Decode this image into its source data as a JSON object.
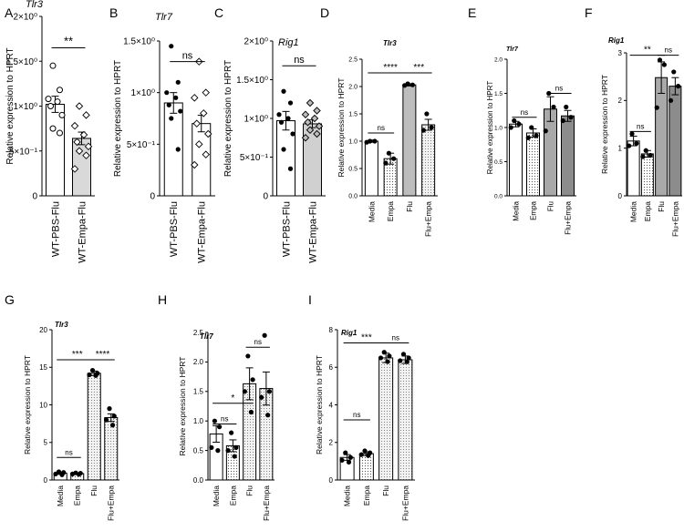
{
  "chart_data": [
    {
      "panel": "A",
      "title": "Tlr3",
      "type": "bar",
      "ylabel": "Relative expression to HPRT",
      "ylim": [
        0,
        2
      ],
      "yticks": [
        {
          "v": 0,
          "t": "0"
        },
        {
          "v": 0.5,
          "t": "5×10⁻¹"
        },
        {
          "v": 1,
          "t": "1×10⁰"
        },
        {
          "v": 1.5,
          "t": "1.5×10⁰"
        },
        {
          "v": 2,
          "t": "2×10⁰"
        }
      ],
      "categories": [
        "WT-PBS-Flu",
        "WT-Empa-Flu"
      ],
      "values": [
        1.02,
        0.64
      ],
      "errors": [
        0.09,
        0.07
      ],
      "points": [
        [
          1.45,
          1.18,
          1.08,
          1.05,
          1.0,
          0.9,
          0.75,
          0.7
        ],
        [
          1.0,
          0.9,
          0.78,
          0.68,
          0.6,
          0.55,
          0.5,
          0.45,
          0.3
        ]
      ],
      "styles": [
        "open-circle",
        "open-diamond"
      ],
      "fills": [
        "#ffffff",
        "#d9d9d9"
      ],
      "sig": [
        {
          "a": 0,
          "b": 1,
          "y": 1.65,
          "label": "**"
        }
      ]
    },
    {
      "panel": "B",
      "title": "Tlr7",
      "type": "bar",
      "ylabel": "Relative expression to HPRT",
      "ylim": [
        0,
        1.5
      ],
      "yticks": [
        {
          "v": 0,
          "t": "0"
        },
        {
          "v": 0.5,
          "t": "5×10⁻¹"
        },
        {
          "v": 1,
          "t": "1×10⁰"
        },
        {
          "v": 1.5,
          "t": "1.5×10⁰"
        }
      ],
      "categories": [
        "WT-PBS-Flu",
        "WT-Empa-Flu"
      ],
      "values": [
        0.9,
        0.7
      ],
      "errors": [
        0.1,
        0.08
      ],
      "points": [
        [
          1.45,
          1.1,
          1.0,
          0.95,
          0.88,
          0.82,
          0.75,
          0.45
        ],
        [
          1.3,
          1.0,
          0.95,
          0.8,
          0.7,
          0.6,
          0.5,
          0.4,
          0.3
        ]
      ],
      "styles": [
        "closed-circle",
        "open-diamond"
      ],
      "fills": [
        "#ffffff",
        "#ffffff"
      ],
      "sig": [
        {
          "a": 0,
          "b": 1,
          "y": 1.3,
          "label": "ns"
        }
      ]
    },
    {
      "panel": "C",
      "title": "Rig1",
      "type": "bar",
      "ylabel": "Relative expression to HPRT",
      "ylim": [
        0,
        2
      ],
      "yticks": [
        {
          "v": 0,
          "t": "0"
        },
        {
          "v": 0.5,
          "t": "5×10⁻¹"
        },
        {
          "v": 1,
          "t": "1×10⁰"
        },
        {
          "v": 1.5,
          "t": "1.5×10⁰"
        },
        {
          "v": 2,
          "t": "2×10⁰"
        }
      ],
      "categories": [
        "WT-PBS-Flu",
        "WT-Empa-Flu"
      ],
      "values": [
        0.97,
        0.93
      ],
      "errors": [
        0.12,
        0.05
      ],
      "points": [
        [
          1.35,
          1.2,
          1.05,
          1.0,
          0.95,
          0.8,
          0.6,
          0.35
        ],
        [
          1.2,
          1.1,
          1.05,
          1.0,
          0.95,
          0.9,
          0.85,
          0.8,
          0.75
        ]
      ],
      "styles": [
        "closed-circle",
        "grey-diamond"
      ],
      "fills": [
        "#ffffff",
        "#d0d0d0"
      ],
      "sig": [
        {
          "a": 0,
          "b": 1,
          "y": 1.68,
          "label": "ns"
        }
      ]
    },
    {
      "panel": "D",
      "title": "Tlr3",
      "type": "bar",
      "ylabel": "Relative expression to HPRT",
      "ylim": [
        0,
        2.5
      ],
      "yticks": [
        {
          "v": 0,
          "t": "0.0"
        },
        {
          "v": 0.5,
          "t": "0.5"
        },
        {
          "v": 1,
          "t": "1.0"
        },
        {
          "v": 1.5,
          "t": "1.5"
        },
        {
          "v": 2,
          "t": "2.0"
        },
        {
          "v": 2.5,
          "t": "2.5"
        }
      ],
      "categories": [
        "Media",
        "Empa",
        "Flu",
        "Flu+Empa"
      ],
      "values": [
        1.0,
        0.68,
        2.03,
        1.3
      ],
      "errors": [
        0.02,
        0.1,
        0.02,
        0.1
      ],
      "points": [
        [
          1.0,
          1.0,
          0.98
        ],
        [
          0.78,
          0.68,
          0.6
        ],
        [
          2.05,
          2.03,
          2.02
        ],
        [
          1.5,
          1.25,
          1.2
        ]
      ],
      "fills": [
        "#ffffff",
        "#e3e3e3",
        "#bdbdbd",
        "#d0d0d0"
      ],
      "sig": [
        {
          "a": 0,
          "b": 2,
          "y": 2.25,
          "label": "****"
        },
        {
          "a": 0,
          "b": 1,
          "y": 1.15,
          "label": "ns"
        },
        {
          "a": 2,
          "b": 3,
          "y": 2.25,
          "label": "***"
        }
      ]
    },
    {
      "panel": "E",
      "title": "Tlr7",
      "type": "bar",
      "ylabel": "Relative expression to HPRT",
      "ylim": [
        0,
        2.0
      ],
      "yticks": [
        {
          "v": 0,
          "t": "0.0"
        },
        {
          "v": 0.5,
          "t": "0.5"
        },
        {
          "v": 1,
          "t": "1.0"
        },
        {
          "v": 1.5,
          "t": "1.5"
        },
        {
          "v": 2,
          "t": "2.0"
        }
      ],
      "categories": [
        "Media",
        "Empa",
        "Flu",
        "Flu+Empa"
      ],
      "values": [
        1.05,
        0.92,
        1.27,
        1.17
      ],
      "errors": [
        0.04,
        0.06,
        0.18,
        0.08
      ],
      "points": [
        [
          1.1,
          1.05,
          1.0
        ],
        [
          1.0,
          0.88,
          0.85
        ],
        [
          1.5,
          1.3,
          0.95
        ],
        [
          1.3,
          1.15,
          1.1
        ]
      ],
      "fills": [
        "#ffffff",
        "#e3e3e3",
        "#a9a9a9",
        "#8c8c8c"
      ],
      "sig": [
        {
          "a": 0,
          "b": 1,
          "y": 1.15,
          "label": "ns"
        },
        {
          "a": 2,
          "b": 3,
          "y": 1.5,
          "label": "ns"
        }
      ]
    },
    {
      "panel": "F",
      "title": "Rig1",
      "type": "bar",
      "ylabel": "Relative expression to HPRT",
      "ylim": [
        0,
        3
      ],
      "yticks": [
        {
          "v": 0,
          "t": "0"
        },
        {
          "v": 1,
          "t": "1"
        },
        {
          "v": 2,
          "t": "2"
        },
        {
          "v": 3,
          "t": "3"
        }
      ],
      "categories": [
        "Media",
        "Empa",
        "Flu",
        "Flu+Empa"
      ],
      "values": [
        1.15,
        0.88,
        2.48,
        2.3
      ],
      "errors": [
        0.1,
        0.07,
        0.33,
        0.18
      ],
      "points": [
        [
          1.3,
          1.1,
          1.05
        ],
        [
          0.95,
          0.85,
          0.82
        ],
        [
          2.85,
          2.75,
          1.85
        ],
        [
          2.6,
          2.3,
          2.0
        ]
      ],
      "fills": [
        "#ffffff",
        "#e3e3e3",
        "#a9a9a9",
        "#8c8c8c"
      ],
      "sig": [
        {
          "a": 0,
          "b": 2,
          "y": 2.95,
          "label": "**"
        },
        {
          "a": 0,
          "b": 1,
          "y": 1.35,
          "label": "ns"
        },
        {
          "a": 2,
          "b": 3,
          "y": 2.95,
          "label": "ns"
        }
      ]
    },
    {
      "panel": "G",
      "title": "Tlr3",
      "type": "bar",
      "ylabel": "Relative expression to HPRT",
      "ylim": [
        0,
        20
      ],
      "yticks": [
        {
          "v": 0,
          "t": "0"
        },
        {
          "v": 5,
          "t": "5"
        },
        {
          "v": 10,
          "t": "10"
        },
        {
          "v": 15,
          "t": "15"
        },
        {
          "v": 20,
          "t": "20"
        }
      ],
      "categories": [
        "Media",
        "Empa",
        "Flu",
        "Flu+Empa"
      ],
      "values": [
        0.9,
        0.85,
        14.2,
        8.3
      ],
      "errors": [
        0.15,
        0.1,
        0.3,
        0.5
      ],
      "points": [
        [
          1.1,
          1.0,
          0.8,
          0.7
        ],
        [
          0.95,
          0.9,
          0.8,
          0.75
        ],
        [
          14.6,
          14.2,
          14.0,
          13.9
        ],
        [
          9.5,
          8.5,
          8.0,
          7.3
        ]
      ],
      "fills": [
        "#ffffff",
        "#e3e3e3",
        "#ececec",
        "#ececec"
      ],
      "sig": [
        {
          "a": 0,
          "b": 2,
          "y": 16.0,
          "label": "***"
        },
        {
          "a": 0,
          "b": 1,
          "y": 3.0,
          "label": "ns"
        },
        {
          "a": 2,
          "b": 3,
          "y": 16.0,
          "label": "****"
        }
      ]
    },
    {
      "panel": "H",
      "title": "Tlr7",
      "type": "bar",
      "ylabel": "Relative expression to HPRT",
      "ylim": [
        0,
        2.5
      ],
      "yticks": [
        {
          "v": 0,
          "t": "0.0"
        },
        {
          "v": 0.5,
          "t": "0.5"
        },
        {
          "v": 1,
          "t": "1.0"
        },
        {
          "v": 1.5,
          "t": "1.5"
        },
        {
          "v": 2,
          "t": "2.0"
        },
        {
          "v": 2.5,
          "t": "2.5"
        }
      ],
      "categories": [
        "Media",
        "Empa",
        "Flu",
        "Flu+Empa"
      ],
      "values": [
        0.78,
        0.58,
        1.63,
        1.55
      ],
      "errors": [
        0.14,
        0.1,
        0.27,
        0.28
      ],
      "points": [
        [
          1.0,
          0.9,
          0.55,
          0.5
        ],
        [
          0.8,
          0.55,
          0.5,
          0.4
        ],
        [
          2.1,
          1.7,
          1.5,
          1.15
        ],
        [
          2.45,
          1.5,
          1.4,
          1.1
        ]
      ],
      "fills": [
        "#ffffff",
        "#e3e3e3",
        "#ececec",
        "#ececec"
      ],
      "sig": [
        {
          "a": 0,
          "b": 2,
          "y": 1.3,
          "label": "*"
        },
        {
          "a": 0,
          "b": 1,
          "y": 0.95,
          "label": "ns"
        },
        {
          "a": 2,
          "b": 3,
          "y": 2.25,
          "label": "ns"
        }
      ]
    },
    {
      "panel": "I",
      "title": "Rig1",
      "type": "bar",
      "ylabel": "Relative expression to HPRT",
      "ylim": [
        0,
        8
      ],
      "yticks": [
        {
          "v": 0,
          "t": "0"
        },
        {
          "v": 2,
          "t": "2"
        },
        {
          "v": 4,
          "t": "4"
        },
        {
          "v": 6,
          "t": "6"
        },
        {
          "v": 8,
          "t": "8"
        }
      ],
      "categories": [
        "Media",
        "Empa",
        "Flu",
        "Flu+Empa"
      ],
      "values": [
        1.2,
        1.4,
        6.5,
        6.4
      ],
      "errors": [
        0.15,
        0.1,
        0.25,
        0.2
      ],
      "points": [
        [
          1.45,
          1.2,
          1.05,
          0.95
        ],
        [
          1.55,
          1.45,
          1.35,
          1.3
        ],
        [
          6.8,
          6.6,
          6.5,
          6.3
        ],
        [
          6.7,
          6.5,
          6.35,
          6.3
        ]
      ],
      "fills": [
        "#ffffff",
        "#e3e3e3",
        "#ececec",
        "#ececec"
      ],
      "sig": [
        {
          "a": 0,
          "b": 2,
          "y": 7.3,
          "label": "***"
        },
        {
          "a": 0,
          "b": 1,
          "y": 3.2,
          "label": "ns"
        },
        {
          "a": 2,
          "b": 3,
          "y": 7.3,
          "label": "ns"
        }
      ]
    }
  ]
}
